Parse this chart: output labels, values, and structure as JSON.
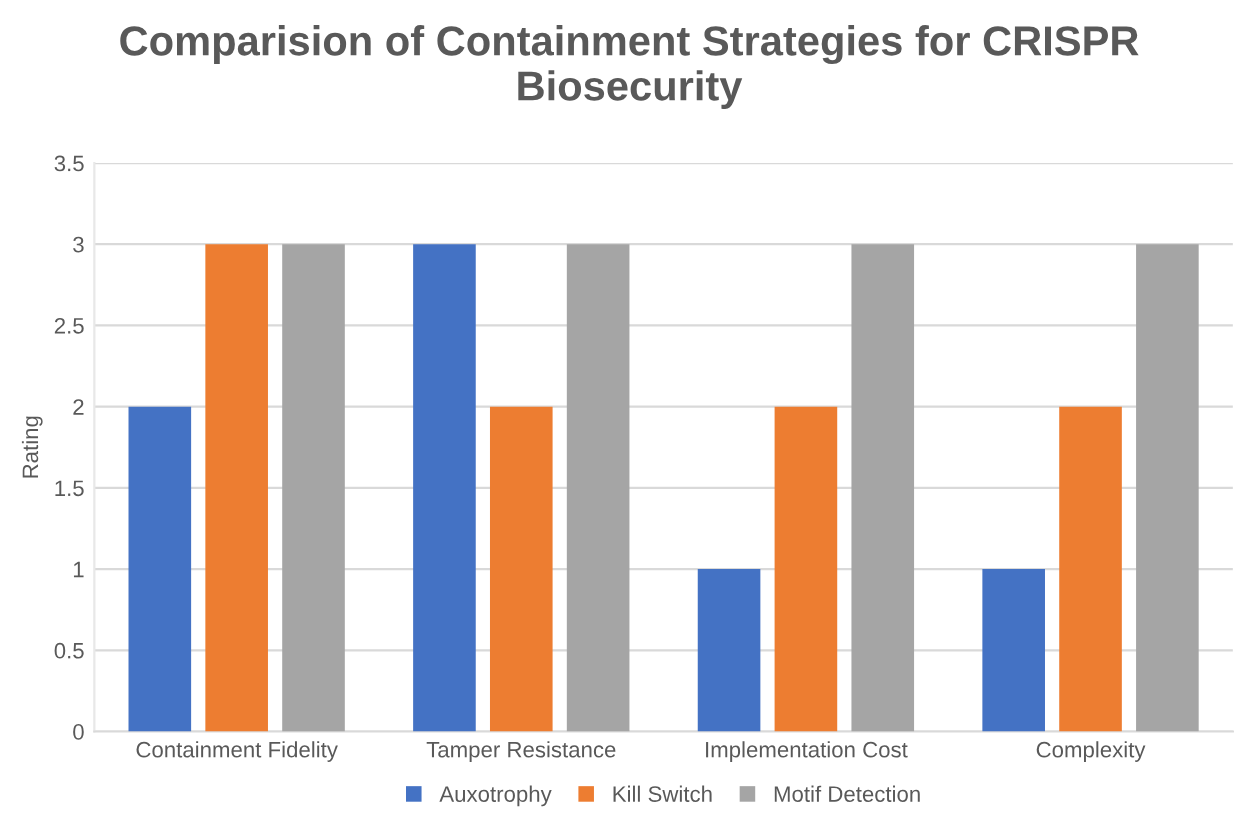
{
  "chart_data": {
    "type": "bar",
    "title": "Comparision of Containment Strategies for CRISPR Biosecurity",
    "ylabel": "Rating",
    "categories": [
      "Containment Fidelity",
      "Tamper Resistance",
      "Implementation Cost",
      "Complexity"
    ],
    "series": [
      {
        "name": "Auxotrophy",
        "color": "#4472c4",
        "values": [
          2,
          3,
          1,
          1
        ]
      },
      {
        "name": "Kill Switch",
        "color": "#ed7d31",
        "values": [
          3,
          2,
          2,
          2
        ]
      },
      {
        "name": "Motif Detection",
        "color": "#a5a5a5",
        "values": [
          3,
          3,
          3,
          3
        ]
      }
    ],
    "ylim": [
      0,
      3.5
    ],
    "yticks": [
      0,
      0.5,
      1,
      1.5,
      2,
      2.5,
      3,
      3.5
    ],
    "grid": "y",
    "legend": "bottom"
  }
}
